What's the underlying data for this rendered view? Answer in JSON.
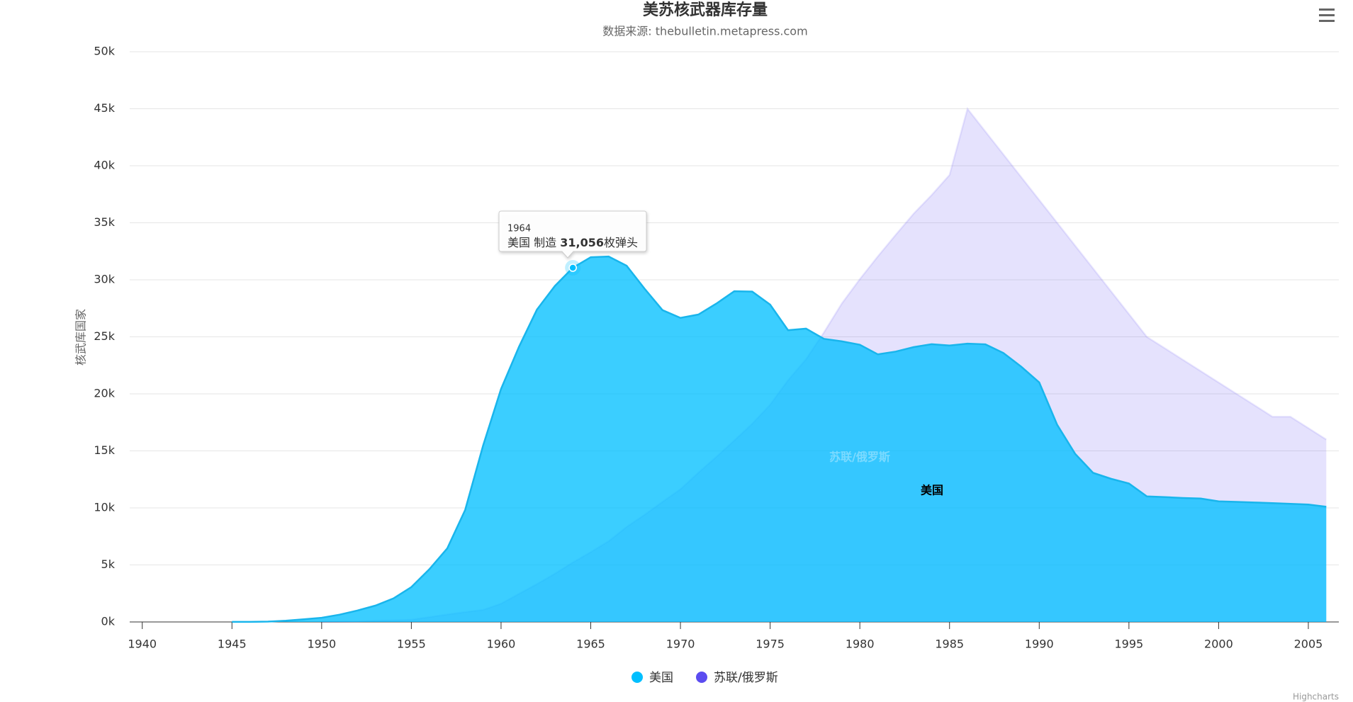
{
  "chart_data": {
    "type": "area",
    "title": "美苏核武器库存量",
    "subtitle": "数据来源: thebulletin.metapress.com",
    "y_axis_title": "核武库国家",
    "x": [
      1940,
      1941,
      1942,
      1943,
      1944,
      1945,
      1946,
      1947,
      1948,
      1949,
      1950,
      1951,
      1952,
      1953,
      1954,
      1955,
      1956,
      1957,
      1958,
      1959,
      1960,
      1961,
      1962,
      1963,
      1964,
      1965,
      1966,
      1967,
      1968,
      1969,
      1970,
      1971,
      1972,
      1973,
      1974,
      1975,
      1976,
      1977,
      1978,
      1979,
      1980,
      1981,
      1982,
      1983,
      1984,
      1985,
      1986,
      1987,
      1988,
      1989,
      1990,
      1991,
      1992,
      1993,
      1994,
      1995,
      1996,
      1997,
      1998,
      1999,
      2000,
      2001,
      2002,
      2003,
      2004,
      2005,
      2006
    ],
    "series": [
      {
        "name": "美国",
        "color": "#00bfff",
        "values": [
          null,
          null,
          null,
          null,
          null,
          6,
          11,
          32,
          110,
          235,
          369,
          640,
          1005,
          1436,
          2063,
          3057,
          4618,
          6444,
          9822,
          15468,
          20434,
          24126,
          27387,
          29459,
          31056,
          31982,
          32040,
          31233,
          29224,
          27342,
          26662,
          26956,
          27912,
          28999,
          28965,
          27826,
          25579,
          25722,
          24826,
          24605,
          24304,
          23464,
          23708,
          24099,
          24357,
          24237,
          24401,
          24344,
          23586,
          22380,
          21004,
          17287,
          14747,
          13076,
          12555,
          12144,
          11009,
          10950,
          10871,
          10824,
          10577,
          10527,
          10475,
          10421,
          10358,
          10295,
          10104
        ]
      },
      {
        "name": "苏联/俄罗斯",
        "color": "#5b4cf0",
        "values": [
          null,
          null,
          null,
          null,
          null,
          null,
          null,
          null,
          null,
          null,
          5,
          25,
          50,
          120,
          150,
          200,
          426,
          660,
          869,
          1060,
          1605,
          2471,
          3322,
          4238,
          5221,
          6129,
          7089,
          8339,
          9399,
          10538,
          11643,
          13092,
          14478,
          15915,
          17385,
          19055,
          21205,
          23044,
          25393,
          27935,
          30062,
          32049,
          33952,
          35804,
          37431,
          39197,
          45000,
          43000,
          41000,
          39000,
          37000,
          35000,
          33000,
          31000,
          29000,
          27000,
          25000,
          24000,
          23000,
          22000,
          21000,
          20000,
          19000,
          18000,
          18000,
          17000,
          16000
        ]
      }
    ],
    "xlim": [
      1939.3,
      2006.7
    ],
    "xticks": [
      1940,
      1945,
      1950,
      1955,
      1960,
      1965,
      1970,
      1975,
      1980,
      1985,
      1990,
      1995,
      2000,
      2005
    ],
    "ylim": [
      0,
      50000
    ],
    "yticks": [
      {
        "value": 0,
        "label": "0k"
      },
      {
        "value": 5000,
        "label": "5k"
      },
      {
        "value": 10000,
        "label": "10k"
      },
      {
        "value": 15000,
        "label": "15k"
      },
      {
        "value": 20000,
        "label": "20k"
      },
      {
        "value": 25000,
        "label": "25k"
      },
      {
        "value": 30000,
        "label": "30k"
      },
      {
        "value": 35000,
        "label": "35k"
      },
      {
        "value": 40000,
        "label": "40k"
      },
      {
        "value": 45000,
        "label": "45k"
      },
      {
        "value": 50000,
        "label": "50k"
      }
    ],
    "grid": true,
    "tooltip": {
      "x_label": "1964",
      "text": "制造",
      "value_label": "31,056",
      "unit": "枚弹头"
    },
    "credits": "Highcharts"
  }
}
